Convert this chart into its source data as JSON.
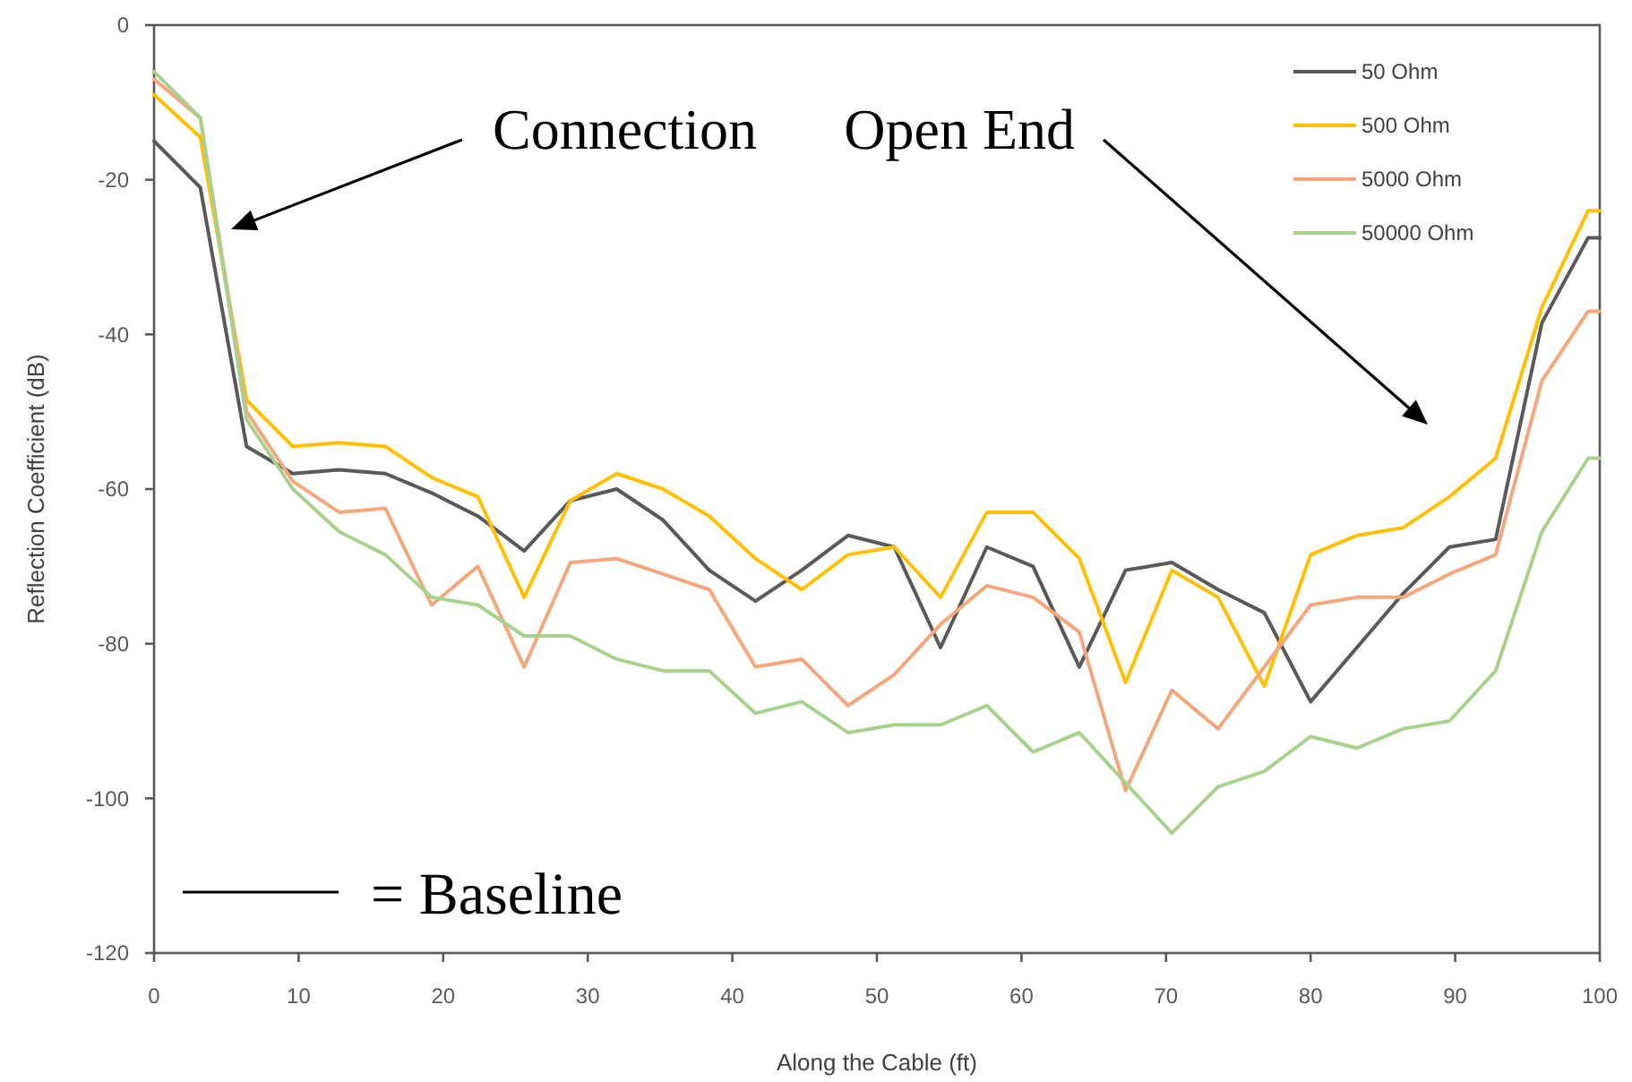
{
  "chart_data": {
    "type": "line",
    "xlabel": "Along the Cable (ft)",
    "ylabel": "Reflection Coefficient (dB)",
    "x": [
      0,
      3.2,
      6.4,
      9.6,
      12.8,
      16,
      19.2,
      22.4,
      25.6,
      28.8,
      32,
      35.2,
      38.4,
      41.6,
      44.8,
      48,
      51.2,
      54.4,
      57.6,
      60.8,
      64,
      67.2,
      70.4,
      73.6,
      76.8,
      80,
      83.2,
      86.4,
      89.6,
      92.8,
      96,
      99.2,
      100
    ],
    "series": [
      {
        "name": "50 Ohm",
        "color": "#595959",
        "values": [
          -15,
          -21,
          -54.5,
          -58,
          -57.5,
          -58,
          -60.5,
          -63.5,
          -68,
          -61.5,
          -60,
          -64,
          -70.5,
          -74.5,
          -70.5,
          -66,
          -67.5,
          -80.5,
          -67.5,
          -70,
          -83,
          -70.5,
          -69.5,
          -73,
          -76,
          -87.5,
          -80.5,
          -73.5,
          -67.5,
          -66.5,
          -38.5,
          -27.5,
          -27.5
        ]
      },
      {
        "name": "500 Ohm",
        "color": "#ffc000",
        "values": [
          -9,
          -14.5,
          -48.5,
          -54.5,
          -54,
          -54.5,
          -58.5,
          -61,
          -74,
          -61.5,
          -58,
          -60,
          -63.5,
          -69,
          -73,
          -68.5,
          -67.5,
          -74,
          -63,
          -63,
          -69,
          -85,
          -70.5,
          -74,
          -85.5,
          -68.5,
          -66,
          -65,
          -61,
          -56,
          -36.5,
          -24,
          -24
        ]
      },
      {
        "name": "5000 Ohm",
        "color": "#f4a67c",
        "values": [
          -7,
          -12,
          -50,
          -59,
          -63,
          -62.5,
          -75,
          -70,
          -83,
          -69.5,
          -69,
          -71,
          -73,
          -83,
          -82,
          -88,
          -84,
          -77.5,
          -72.5,
          -74,
          -78.5,
          -99,
          -86,
          -91,
          -83,
          -75,
          -74,
          -74,
          -71,
          -68.5,
          -46,
          -37,
          -37
        ]
      },
      {
        "name": "50000 Ohm",
        "color": "#a9d18e",
        "values": [
          -6,
          -12,
          -51,
          -60,
          -65.5,
          -68.5,
          -74,
          -75,
          -79,
          -79,
          -82,
          -83.5,
          -83.5,
          -89,
          -87.5,
          -91.5,
          -90.5,
          -90.5,
          -88,
          -94,
          -91.5,
          -98,
          -104.5,
          -98.5,
          -96.5,
          -92,
          -93.5,
          -91,
          -90,
          -83.5,
          -65.5,
          -56,
          -56
        ]
      }
    ],
    "xlim": [
      0,
      100
    ],
    "xticks": [
      0,
      10,
      20,
      30,
      40,
      50,
      60,
      70,
      80,
      90,
      100
    ],
    "ylim": [
      -120,
      0
    ],
    "yticks": [
      -120,
      -100,
      -80,
      -60,
      -40,
      -20,
      0
    ],
    "legend": "top right",
    "annotations": [
      "Connection",
      "Open End",
      "= Baseline"
    ]
  }
}
